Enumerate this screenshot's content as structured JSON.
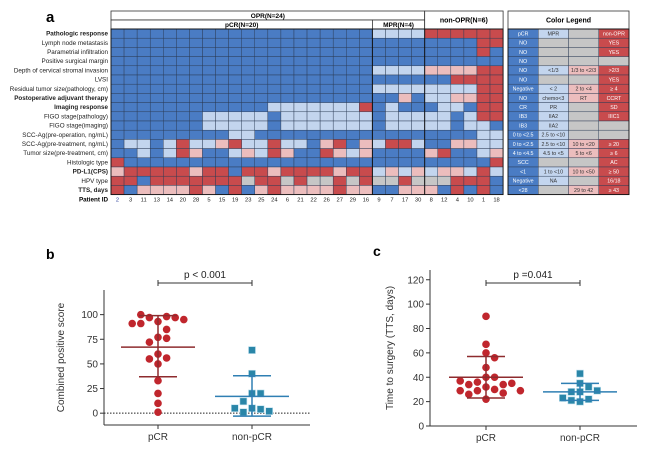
{
  "colors": {
    "B": "#4a7cc4",
    "L": "#c3d5ee",
    "P": "#ecbdbd",
    "R": "#c84b4d",
    "G": "#c6c6c6",
    "pcr_dot": "#c0262d",
    "nonpcr_dot": "#2a86a8",
    "pcr_line": "#8e2b2e",
    "nonpcr_line": "#2f7fb3"
  },
  "chart_data": [
    {
      "type": "heatmap",
      "panel_label": "a",
      "groups": {
        "opr": "OPR(N=24)",
        "pcr": "pCR(N=20)",
        "mpr": "MPR(N=4)",
        "non_opr": "non-OPR(N=6)"
      },
      "row_labels": [
        "Pathologic response",
        "Lymph node metastasis",
        "Parametrial infiltration",
        "Positive surgical margin",
        "Depth of cervical stromal invasion",
        "LVSI",
        "Residual tumor size(pathology, cm)",
        "Postoperative adjuvant therapy",
        "Imaging response",
        "FIGO stage(pathology)",
        "FIGO stage(imaging)",
        "SCC-Ag(pre-operation, ng/mL)",
        "SCC-Ag(pre-treatment, ng/mL)",
        "Tumor size(pre-treatment, cm)",
        "Histologic type",
        "PD-L1(CPS)",
        "HPV type",
        "TTS, days"
      ],
      "patient_id_label": "Patient ID",
      "patient_ids": [
        "2",
        "3",
        "11",
        "13",
        "14",
        "20",
        "28",
        "5",
        "15",
        "19",
        "23",
        "25",
        "24",
        "6",
        "21",
        "22",
        "26",
        "27",
        "29",
        "16",
        "9",
        "7",
        "17",
        "30",
        "8",
        "12",
        "4",
        "10",
        "1",
        "18"
      ],
      "cells": [
        "BBBBBBBBBBBBBBBBBBBBLLLLRRRRRR",
        "BBBBBBBBBBBBBBBBBBBBBBBBBBBBRR",
        "BBBBBBBBBBBBBBBBBBBBBBBBBBBBRB",
        "BBBBBBBBBBBBBBBBBBBBBBBBBBBBBB",
        "BBBBBBBBBBBBBBBBBBBBLLLLPPPPRR",
        "BBBBBBBBBBBBBBBBBBBBBBBBBBRRRR",
        "BBBBBBBBBBBBBBBBBBBBLLLLLLLLRR",
        "BBBBBBBBBBBBBBBBBBBBBBPBLLPPRR",
        "BBBBBBBBBBBBLLLLLLLRBLBBBLLBRR",
        "BBBBBBBLLLLLBLLLLLLLBLLLLLBLRR",
        "BBBBBBBLLLLLBLLLLLLLBLLLLLBLLB",
        "BBBBBBBBBLLBBBBBBBBBBBBBBBBBLL",
        "BLLBLRLLPRLLRLLBPRBPLRRLBBPPLL",
        "BBLBLRPBBLPLRPBBRPLPBBBBPRBBLP",
        "RBBBBBBBBBBBBBBBBBBBBBBBBBBBBR",
        "PRRRRRPRRBRRPRRRRPRRLPLPLPPLRL",
        "RRBRRRRRRRGRRGRGGRGRGGRGGGRRRB",
        "RBPPPPRPBRBPRPPPPRPPBBPPPBRBRB"
      ],
      "legend": {
        "title": "Color Legend",
        "rows": [
          [
            [
              "B",
              "pCR"
            ],
            [
              "L",
              "MPR"
            ],
            [
              "G",
              ""
            ],
            [
              "R",
              "non-OPR"
            ]
          ],
          [
            [
              "B",
              "NO"
            ],
            [
              "G",
              ""
            ],
            [
              "G",
              ""
            ],
            [
              "R",
              "YES"
            ]
          ],
          [
            [
              "B",
              "NO"
            ],
            [
              "G",
              ""
            ],
            [
              "G",
              ""
            ],
            [
              "R",
              "YES"
            ]
          ],
          [
            [
              "B",
              "NO"
            ],
            [
              "G",
              ""
            ],
            [
              "G",
              ""
            ],
            [
              "G",
              ""
            ]
          ],
          [
            [
              "B",
              "NO"
            ],
            [
              "L",
              "<1/3"
            ],
            [
              "P",
              "1/3 to <2/3"
            ],
            [
              "R",
              ">2/3"
            ]
          ],
          [
            [
              "B",
              "NO"
            ],
            [
              "G",
              ""
            ],
            [
              "G",
              ""
            ],
            [
              "R",
              "YES"
            ]
          ],
          [
            [
              "B",
              "Negative"
            ],
            [
              "L",
              "< 2"
            ],
            [
              "P",
              "2 to <4"
            ],
            [
              "R",
              "≥ 4"
            ]
          ],
          [
            [
              "B",
              "NO"
            ],
            [
              "L",
              "chemo<3"
            ],
            [
              "P",
              "RT"
            ],
            [
              "R",
              "CCRT"
            ]
          ],
          [
            [
              "B",
              "CR"
            ],
            [
              "L",
              "PR"
            ],
            [
              "G",
              ""
            ],
            [
              "R",
              "SD"
            ]
          ],
          [
            [
              "B",
              "IB3"
            ],
            [
              "L",
              "IIA2"
            ],
            [
              "G",
              ""
            ],
            [
              "R",
              "IIIC1"
            ]
          ],
          [
            [
              "B",
              "IB3"
            ],
            [
              "L",
              "IIA2"
            ],
            [
              "G",
              ""
            ],
            [
              "G",
              ""
            ]
          ],
          [
            [
              "B",
              "0 to <2.5"
            ],
            [
              "L",
              "2.5 to <10"
            ],
            [
              "G",
              ""
            ],
            [
              "G",
              ""
            ]
          ],
          [
            [
              "B",
              "0 to <2.5"
            ],
            [
              "L",
              "2.5 to <10"
            ],
            [
              "P",
              "10 to <20"
            ],
            [
              "R",
              "≥ 20"
            ]
          ],
          [
            [
              "B",
              "4 to <4.5"
            ],
            [
              "L",
              "4.5 to <5"
            ],
            [
              "P",
              "5 to <6"
            ],
            [
              "R",
              "≥ 6"
            ]
          ],
          [
            [
              "B",
              "SCC"
            ],
            [
              "G",
              ""
            ],
            [
              "G",
              ""
            ],
            [
              "R",
              "AC"
            ]
          ],
          [
            [
              "B",
              "<1"
            ],
            [
              "L",
              "1 to <10"
            ],
            [
              "P",
              "10 to <50"
            ],
            [
              "R",
              "≥ 50"
            ]
          ],
          [
            [
              "B",
              "Negative"
            ],
            [
              "L",
              "NA"
            ],
            [
              "G",
              ""
            ],
            [
              "R",
              "16/18"
            ]
          ],
          [
            [
              "B",
              "<28"
            ],
            [
              "G",
              ""
            ],
            [
              "P",
              "29 to 42"
            ],
            [
              "R",
              "≥ 43"
            ]
          ]
        ]
      }
    },
    {
      "type": "scatter",
      "panel_label": "b",
      "ylabel": "Combined positive score",
      "categories": [
        "pCR",
        "non-pCR"
      ],
      "yticks": [
        0,
        25,
        50,
        75,
        100
      ],
      "ylim": [
        -12,
        125
      ],
      "annotation": "p < 0.001",
      "baseline": 0,
      "series": [
        {
          "category": "pCR",
          "values": [
            93,
            98,
            97,
            97,
            100,
            95,
            91,
            91,
            85,
            77,
            76,
            72,
            60,
            56,
            55,
            50,
            33,
            20,
            10,
            1
          ],
          "mean": 67,
          "sd_low": 37,
          "sd_high": 99
        },
        {
          "category": "non-pCR",
          "values": [
            64,
            40,
            20,
            20,
            12,
            5,
            4,
            1,
            2,
            5
          ],
          "mean": 17,
          "sd_low": -3,
          "sd_high": 38
        }
      ]
    },
    {
      "type": "scatter",
      "panel_label": "c",
      "ylabel": "Time to surgery (TTS, days)",
      "categories": [
        "pCR",
        "non-pCR"
      ],
      "yticks": [
        0,
        20,
        40,
        60,
        80,
        100,
        120
      ],
      "ylim": [
        0,
        128
      ],
      "annotation": "p =0.041",
      "series": [
        {
          "category": "pCR",
          "values": [
            90,
            67,
            60,
            56,
            48,
            40,
            40,
            36,
            34,
            32,
            30,
            34,
            35,
            37,
            29,
            27,
            29,
            29,
            26,
            22
          ],
          "mean": 40,
          "sd_low": 23,
          "sd_high": 57
        },
        {
          "category": "non-pCR",
          "values": [
            43,
            35,
            32,
            28,
            28,
            29,
            22,
            20,
            21,
            23
          ],
          "mean": 28,
          "sd_low": 21,
          "sd_high": 35
        }
      ]
    }
  ]
}
